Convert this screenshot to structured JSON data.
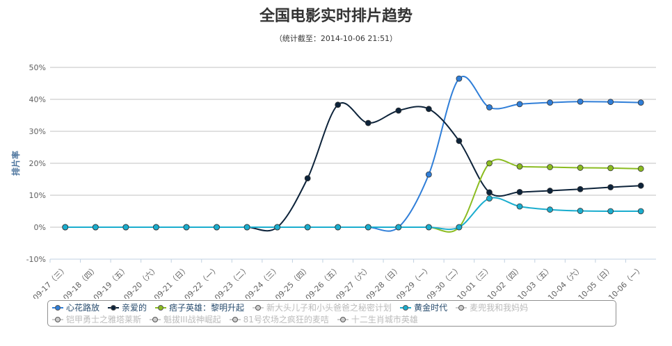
{
  "chart_data": {
    "type": "line",
    "title": "全国电影实时排片趋势",
    "subtitle": "（统计截至：2014-10-06 21:51）",
    "y_label": "排片率",
    "categories": [
      "09-17（三）",
      "09-18（四）",
      "09-19（五）",
      "09-20（六）",
      "09-21（日）",
      "09-22（一）",
      "09-23（二）",
      "09-24（三）",
      "09-25（四）",
      "09-26（五）",
      "09-27（六）",
      "09-28（日）",
      "09-29（一）",
      "09-30（二）",
      "10-01（三）",
      "10-02（四）",
      "10-03（五）",
      "10-04（六）",
      "10-05（日）",
      "10-06（一）"
    ],
    "ylim": [
      -10,
      50
    ],
    "yticks": [
      {
        "value": -10,
        "label": "-10%"
      },
      {
        "value": 0,
        "label": "0%"
      },
      {
        "value": 10,
        "label": "10%"
      },
      {
        "value": 20,
        "label": "20%"
      },
      {
        "value": 30,
        "label": "30%"
      },
      {
        "value": 40,
        "label": "40%"
      },
      {
        "value": 50,
        "label": "50%"
      }
    ],
    "grid": true,
    "series": [
      {
        "name": "心花路放",
        "color": "#2f7ed8",
        "visible": true,
        "values": [
          0,
          0,
          0,
          0,
          0,
          0,
          0,
          0,
          0,
          0,
          0,
          0,
          16.5,
          46.5,
          37.5,
          38.5,
          39,
          39.3,
          39.2,
          39
        ]
      },
      {
        "name": "亲爱的",
        "color": "#0d233a",
        "visible": true,
        "values": [
          0,
          0,
          0,
          0,
          0,
          0,
          0,
          0,
          15.3,
          38.3,
          32.6,
          36.5,
          37,
          27,
          10.9,
          11,
          11.4,
          11.9,
          12.5,
          13
        ]
      },
      {
        "name": "痞子英雄：黎明升起",
        "color": "#8bbc21",
        "visible": true,
        "values": [
          0,
          0,
          0,
          0,
          0,
          0,
          0,
          0,
          0,
          0,
          0,
          0,
          0,
          0,
          20,
          19,
          18.8,
          18.6,
          18.5,
          18.3
        ]
      },
      {
        "name": "新大头儿子和小头爸爸之秘密计划",
        "color": "#cccccc",
        "visible": false
      },
      {
        "name": "黄金时代",
        "color": "#1aadce",
        "visible": true,
        "values": [
          0,
          0,
          0,
          0,
          0,
          0,
          0,
          0,
          0,
          0,
          0,
          0,
          0,
          0,
          9,
          6.5,
          5.5,
          5.1,
          5,
          5
        ]
      },
      {
        "name": "麦兜我和我妈妈",
        "color": "#cccccc",
        "visible": false
      },
      {
        "name": "铠甲勇士之雅塔莱斯",
        "color": "#cccccc",
        "visible": false
      },
      {
        "name": "魁拔III战神崛起",
        "color": "#cccccc",
        "visible": false
      },
      {
        "name": "81号农场之疯狂的麦咭",
        "color": "#cccccc",
        "visible": false
      },
      {
        "name": "十二生肖城市英雄",
        "color": "#cccccc",
        "visible": false
      }
    ]
  }
}
